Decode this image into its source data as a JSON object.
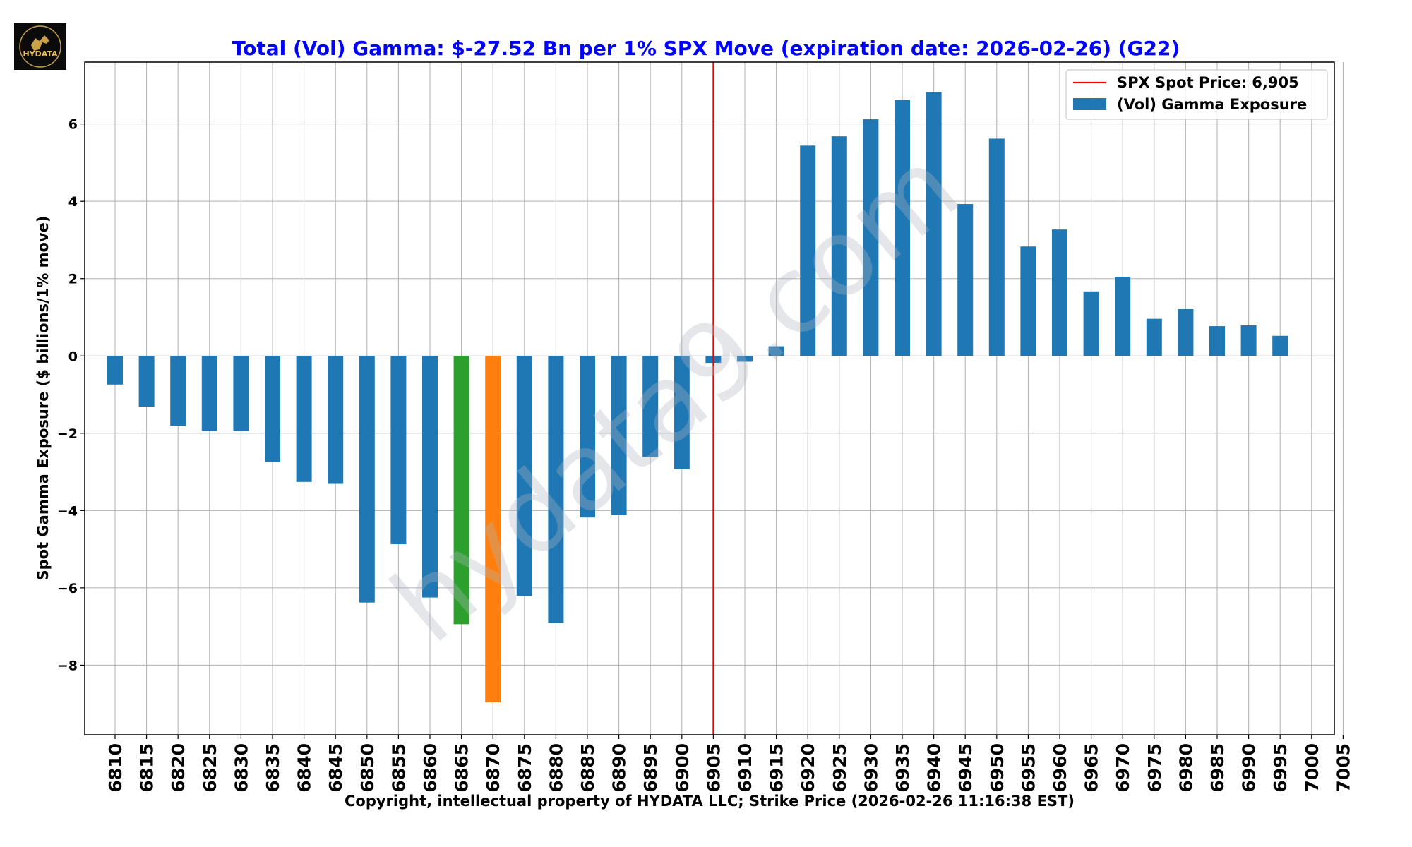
{
  "logo": {
    "text": "HYDATA"
  },
  "watermark": "hydata9.com",
  "colors": {
    "bar": "#1f77b4",
    "highlight_green": "#2ca02c",
    "highlight_orange": "#ff7f0e",
    "spot_line": "#ff0000",
    "title": "#0000ff",
    "grid": "#b0b0b0"
  },
  "chart_data": {
    "type": "bar",
    "title": "Total (Vol) Gamma: $-27.52 Bn per 1% SPX Move (expiration date: 2026-02-26) (G22)",
    "xlabel": "Copyright, intellectual property of HYDATA LLC; Strike Price (2026-02-26 11:16:38 EST)",
    "ylabel": "Spot Gamma Exposure ($ billions/1% move)",
    "ylim": [
      -9.8,
      7.6
    ],
    "yticks": [
      -8,
      -6,
      -4,
      -2,
      0,
      2,
      4,
      6
    ],
    "ytick_labels": [
      "−8",
      "−6",
      "−4",
      "−2",
      "0",
      "2",
      "4",
      "6"
    ],
    "categories": [
      "6810",
      "6815",
      "6820",
      "6825",
      "6830",
      "6835",
      "6840",
      "6845",
      "6850",
      "6855",
      "6860",
      "6865",
      "6870",
      "6875",
      "6880",
      "6885",
      "6890",
      "6895",
      "6900",
      "6905",
      "6910",
      "6915",
      "6920",
      "6925",
      "6930",
      "6935",
      "6940",
      "6945",
      "6950",
      "6955",
      "6960",
      "6965",
      "6970",
      "6975",
      "6980",
      "6985",
      "6990",
      "6995",
      "7000",
      "7005"
    ],
    "values": [
      -0.74,
      -1.31,
      -1.81,
      -1.94,
      -1.94,
      -2.74,
      -3.26,
      -3.31,
      -6.38,
      -4.87,
      -6.25,
      -6.94,
      -8.96,
      -6.21,
      -6.91,
      -4.18,
      -4.12,
      -2.62,
      -2.93,
      -0.18,
      -0.15,
      0.25,
      5.44,
      5.68,
      6.12,
      6.62,
      6.82,
      3.93,
      5.62,
      2.83,
      3.27,
      1.67,
      2.05,
      0.96,
      1.21,
      0.77,
      0.79,
      0.52,
      null,
      null
    ],
    "highlights": {
      "6865": "green",
      "6870": "orange"
    },
    "spot_price": {
      "strike": "6905",
      "label": "SPX Spot Price: 6,905"
    },
    "legend": {
      "position": "top-right",
      "entries": [
        "SPX Spot Price: 6,905",
        "(Vol) Gamma Exposure"
      ]
    },
    "grid": true
  }
}
